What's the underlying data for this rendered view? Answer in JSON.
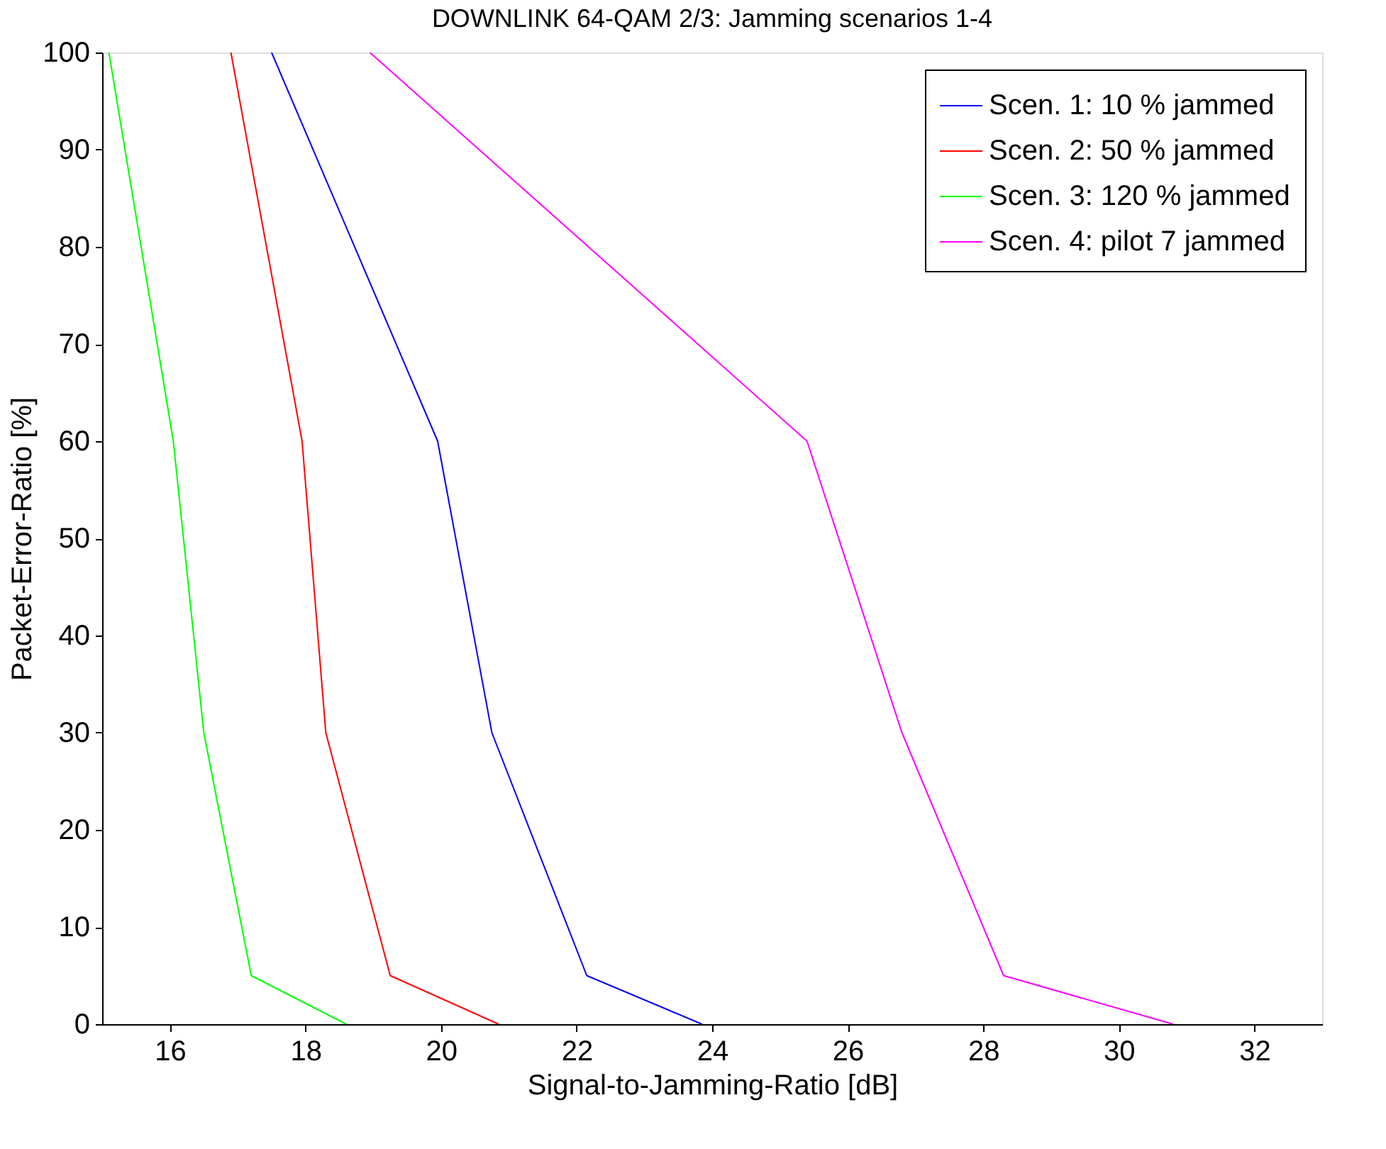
{
  "chart_data": {
    "type": "line",
    "title": "DOWNLINK 64-QAM 2/3: Jamming scenarios 1-4",
    "xlabel": "Signal-to-Jamming-Ratio [dB]",
    "ylabel": "Packet-Error-Ratio [%]",
    "xlim": [
      15,
      33
    ],
    "xticks": [
      16,
      18,
      20,
      22,
      24,
      26,
      28,
      30,
      32
    ],
    "ylim": [
      0,
      100
    ],
    "yticks": [
      0,
      10,
      20,
      30,
      40,
      50,
      60,
      70,
      80,
      90,
      100
    ],
    "grid": false,
    "legend": "top right",
    "marker": "none",
    "line_style": "solid",
    "series": [
      {
        "name": "Scen. 1: 10 % jammed",
        "color": "#0000ff",
        "x": [
          17.5,
          19.95,
          20.75,
          22.15,
          23.85
        ],
        "values": [
          100,
          60,
          30,
          5,
          0
        ]
      },
      {
        "name": "Scen. 2: 50 % jammed",
        "color": "#ff0000",
        "x": [
          16.9,
          17.95,
          18.3,
          19.25,
          20.85
        ],
        "values": [
          100,
          60,
          30,
          5,
          0
        ]
      },
      {
        "name": "Scen. 3: 120 % jammed",
        "color": "#00ff00",
        "x": [
          15.1,
          16.05,
          16.5,
          17.2,
          18.6
        ],
        "values": [
          100,
          60,
          30,
          5,
          0
        ]
      },
      {
        "name": "Scen. 4: pilot 7 jammed",
        "color": "#ff00ff",
        "x": [
          18.95,
          25.4,
          26.8,
          28.3,
          30.8
        ],
        "values": [
          100,
          60,
          30,
          5,
          0
        ]
      }
    ]
  }
}
